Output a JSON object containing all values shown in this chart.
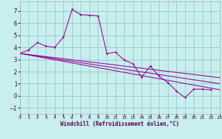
{
  "xlabel": "Windchill (Refroidissement éolien,°C)",
  "bg_color": "#c8eeee",
  "grid_color": "#99cccc",
  "line_color": "#990099",
  "xlim": [
    0,
    23
  ],
  "ylim": [
    -1.5,
    7.8
  ],
  "xticks": [
    0,
    1,
    2,
    3,
    4,
    5,
    6,
    7,
    8,
    9,
    10,
    11,
    12,
    13,
    14,
    15,
    16,
    17,
    18,
    19,
    20,
    21,
    22,
    23
  ],
  "yticks": [
    -1,
    0,
    1,
    2,
    3,
    4,
    5,
    6,
    7
  ],
  "main_x": [
    0,
    1,
    2,
    3,
    4,
    5,
    6,
    7,
    8,
    9,
    10,
    11,
    12,
    13,
    14,
    15,
    16,
    17,
    18,
    19,
    20,
    21,
    22
  ],
  "main_y": [
    3.5,
    3.8,
    4.4,
    4.1,
    4.0,
    4.85,
    7.15,
    6.7,
    6.65,
    6.6,
    3.5,
    3.6,
    2.95,
    2.65,
    1.55,
    2.45,
    1.65,
    1.1,
    0.4,
    -0.15,
    0.55,
    0.55,
    0.5
  ],
  "line1_x": [
    0,
    23
  ],
  "line1_y": [
    3.5,
    0.5
  ],
  "line2_x": [
    0,
    23
  ],
  "line2_y": [
    3.5,
    1.0
  ],
  "line3_x": [
    0,
    23
  ],
  "line3_y": [
    3.5,
    1.5
  ]
}
